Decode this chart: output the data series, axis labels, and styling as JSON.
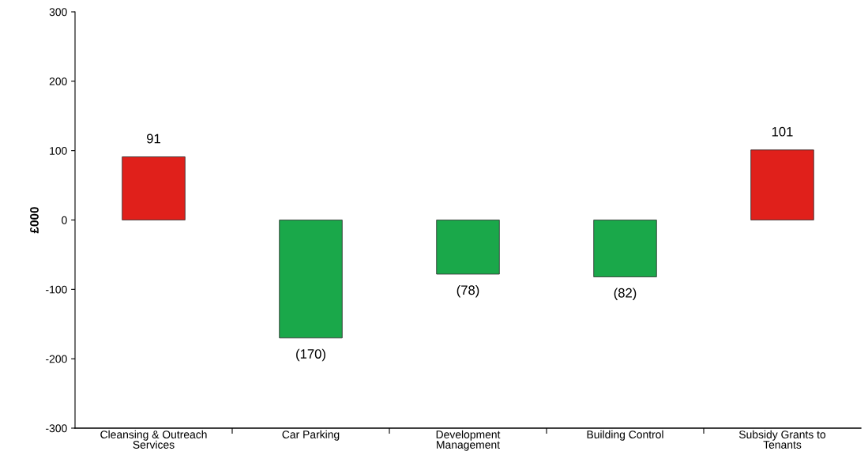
{
  "chart_data": {
    "type": "bar",
    "ylabel": "£000",
    "categories": [
      "Cleansing & Outreach\nServices",
      "Car Parking",
      "Development\nManagement",
      "Building Control",
      "Subsidy Grants to\nTenants"
    ],
    "values": [
      91,
      -170,
      -78,
      -82,
      101
    ],
    "colors": [
      "#e0201b",
      "#1aa84a",
      "#1aa84a",
      "#1aa84a",
      "#e0201b"
    ],
    "value_labels": [
      "91",
      "(170)",
      "(78)",
      "(82)",
      "101"
    ],
    "ylim": [
      -300,
      300
    ],
    "yticks": [
      -300,
      -200,
      -100,
      0,
      100,
      200,
      300
    ],
    "grid": false,
    "legend": false
  }
}
